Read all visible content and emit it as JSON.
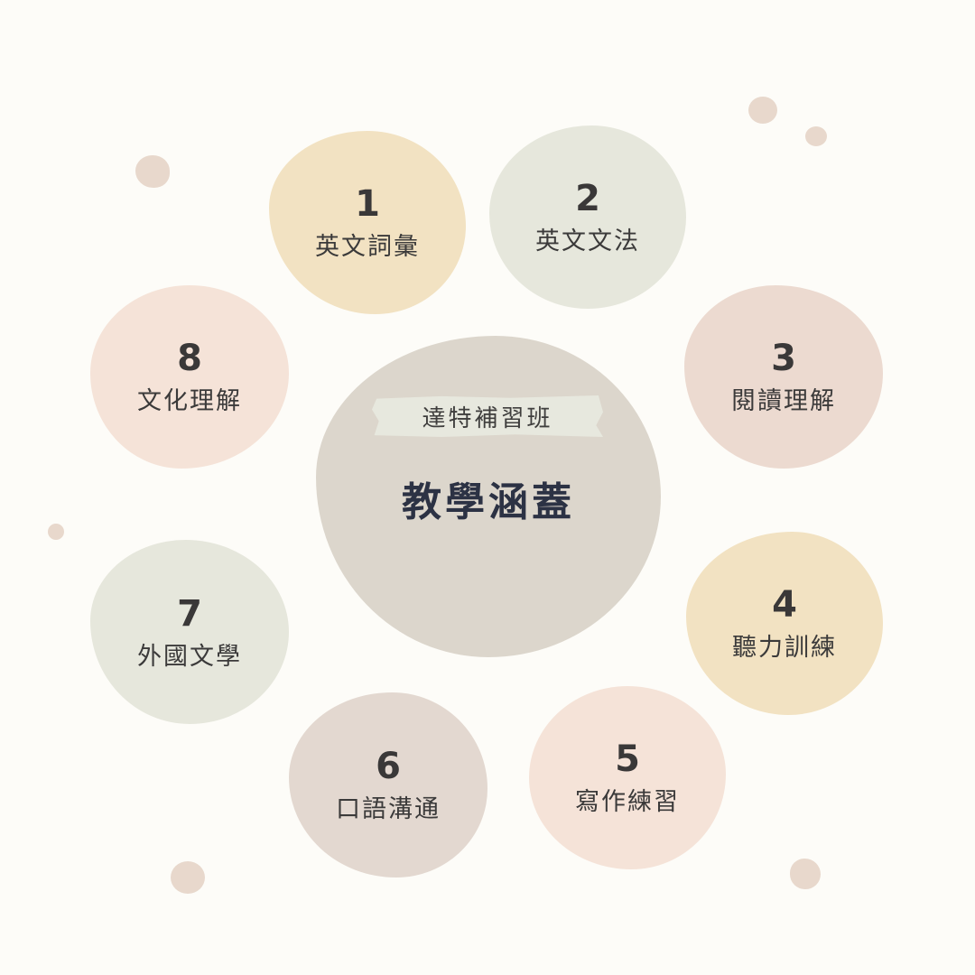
{
  "center": {
    "tag": "達特補習班",
    "title": "教學涵蓋"
  },
  "items": [
    {
      "number": "1",
      "label": "英文詞彙",
      "color": "#f2e2c2"
    },
    {
      "number": "2",
      "label": "英文文法",
      "color": "#e6e7dc"
    },
    {
      "number": "3",
      "label": "閱讀理解",
      "color": "#ecdad0"
    },
    {
      "number": "4",
      "label": "聽力訓練",
      "color": "#f2e2c2"
    },
    {
      "number": "5",
      "label": "寫作練習",
      "color": "#f5e3d8"
    },
    {
      "number": "6",
      "label": "口語溝通",
      "color": "#e3d8d0"
    },
    {
      "number": "7",
      "label": "外國文學",
      "color": "#e6e7dc"
    },
    {
      "number": "8",
      "label": "文化理解",
      "color": "#f5e3d8"
    }
  ],
  "colors": {
    "background": "#fdfcf8",
    "center_circle": "#dcd6cc",
    "title_text": "#2c3244",
    "dot": "#e8d8cc"
  }
}
